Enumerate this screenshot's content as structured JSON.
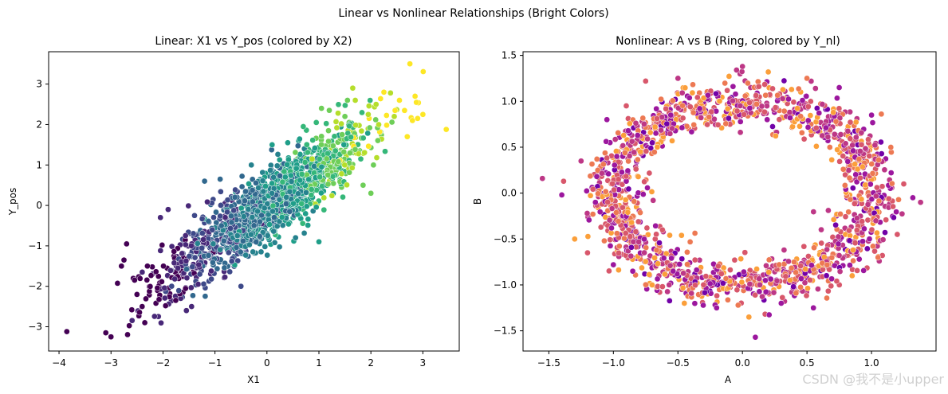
{
  "figure": {
    "suptitle": "Linear vs Nonlinear Relationships (Bright Colors)",
    "watermark": "CSDN @我不是小upper"
  },
  "chart_data": [
    {
      "type": "scatter",
      "title": "Linear: X1 vs Y_pos (colored by X2)",
      "xlabel": "X1",
      "ylabel": "Y_pos",
      "xlim": [
        -4.2,
        3.7
      ],
      "ylim": [
        -3.6,
        3.8
      ],
      "xticks": [
        -4,
        -3,
        -2,
        -1,
        0,
        1,
        2,
        3
      ],
      "xtick_labels": [
        "−4",
        "−3",
        "−2",
        "−1",
        "0",
        "1",
        "2",
        "3"
      ],
      "yticks": [
        -3,
        -2,
        -1,
        0,
        1,
        2,
        3
      ],
      "ytick_labels": [
        "−3",
        "−2",
        "−1",
        "0",
        "1",
        "2",
        "3"
      ],
      "grid": false,
      "legend": "none",
      "color_map": "viridis",
      "color_by": "X2",
      "point_count": 1500,
      "point_color_range": [
        "#440154",
        "#fde725"
      ],
      "distribution": "approx. bivariate normal along y ≈ 0.9·x",
      "points": [
        [
          -3.85,
          -3.12
        ],
        [
          -3.1,
          -3.15
        ],
        [
          -3.0,
          -3.25
        ],
        [
          -2.8,
          -1.5
        ],
        [
          -2.75,
          -1.35
        ],
        [
          -2.6,
          -2.58
        ],
        [
          -2.5,
          -2.2
        ],
        [
          -2.4,
          -2.5
        ],
        [
          -2.35,
          -2.9
        ],
        [
          -2.7,
          -0.95
        ],
        [
          -2.3,
          -1.5
        ],
        [
          -2.05,
          -0.3
        ],
        [
          -1.95,
          -2.48
        ],
        [
          -1.9,
          -0.1
        ],
        [
          -1.55,
          -2.6
        ],
        [
          -1.45,
          -2.5
        ],
        [
          -1.2,
          0.6
        ],
        [
          -0.9,
          0.65
        ],
        [
          -0.5,
          -2.0
        ],
        [
          -0.3,
          1.0
        ],
        [
          0.1,
          1.5
        ],
        [
          0.4,
          1.55
        ],
        [
          0.55,
          -0.8
        ],
        [
          0.7,
          1.95
        ],
        [
          0.95,
          2.05
        ],
        [
          1.0,
          -0.9
        ],
        [
          1.05,
          2.4
        ],
        [
          1.2,
          2.35
        ],
        [
          1.5,
          2.2
        ],
        [
          1.55,
          2.6
        ],
        [
          1.65,
          2.9
        ],
        [
          1.7,
          2.6
        ],
        [
          1.85,
          0.5
        ],
        [
          1.95,
          2.25
        ],
        [
          2.0,
          0.3
        ],
        [
          2.05,
          1.0
        ],
        [
          2.1,
          2.5
        ],
        [
          2.15,
          2.0
        ],
        [
          2.25,
          2.8
        ],
        [
          2.45,
          2.2
        ],
        [
          2.55,
          2.6
        ],
        [
          2.7,
          1.7
        ],
        [
          2.75,
          3.5
        ],
        [
          2.8,
          2.1
        ],
        [
          2.85,
          2.7
        ],
        [
          2.9,
          2.15
        ],
        [
          3.0,
          2.25
        ],
        [
          3.45,
          1.88
        ]
      ]
    },
    {
      "type": "scatter",
      "title": "Nonlinear: A vs B (Ring, colored by Y_nl)",
      "xlabel": "A",
      "ylabel": "B",
      "xlim": [
        -1.7,
        1.5
      ],
      "ylim": [
        -1.72,
        1.54
      ],
      "xticks": [
        -1.5,
        -1.0,
        -0.5,
        0.0,
        0.5,
        1.0
      ],
      "xtick_labels": [
        "−1.5",
        "−1.0",
        "−0.5",
        "0.0",
        "0.5",
        "1.0"
      ],
      "yticks": [
        -1.5,
        -1.0,
        -0.5,
        0.0,
        0.5,
        1.0,
        1.5
      ],
      "ytick_labels": [
        "−1.5",
        "−1.0",
        "−0.5",
        "0.0",
        "0.5",
        "1.0",
        "1.5"
      ],
      "grid": false,
      "legend": "none",
      "color_map": "plasma",
      "color_by": "Y_nl",
      "point_count": 1500,
      "point_color_range": [
        "#6a00a8",
        "#fca636"
      ],
      "distribution": "ring centred at (0, 0), radius ≈ 1.0, spread ≈ 0.12",
      "points": [
        [
          -1.55,
          0.16
        ],
        [
          -1.4,
          -0.02
        ],
        [
          -1.3,
          -0.5
        ],
        [
          -1.25,
          0.35
        ],
        [
          -1.2,
          -0.65
        ],
        [
          -1.05,
          0.8
        ],
        [
          -1.0,
          -0.78
        ],
        [
          -0.9,
          0.95
        ],
        [
          -0.85,
          -0.85
        ],
        [
          -0.75,
          1.22
        ],
        [
          -0.7,
          -1.0
        ],
        [
          -0.5,
          1.25
        ],
        [
          -0.45,
          -1.2
        ],
        [
          -0.2,
          -1.25
        ],
        [
          0.0,
          1.38
        ],
        [
          0.05,
          -1.35
        ],
        [
          0.1,
          -1.57
        ],
        [
          0.2,
          1.32
        ],
        [
          0.3,
          -1.2
        ],
        [
          0.5,
          1.25
        ],
        [
          0.55,
          -1.25
        ],
        [
          0.75,
          1.15
        ],
        [
          0.85,
          -0.9
        ],
        [
          1.0,
          0.85
        ],
        [
          1.05,
          -0.7
        ],
        [
          1.15,
          0.5
        ],
        [
          1.2,
          -0.45
        ],
        [
          1.25,
          0.1
        ],
        [
          1.32,
          -0.05
        ],
        [
          1.38,
          -0.1
        ]
      ]
    }
  ]
}
